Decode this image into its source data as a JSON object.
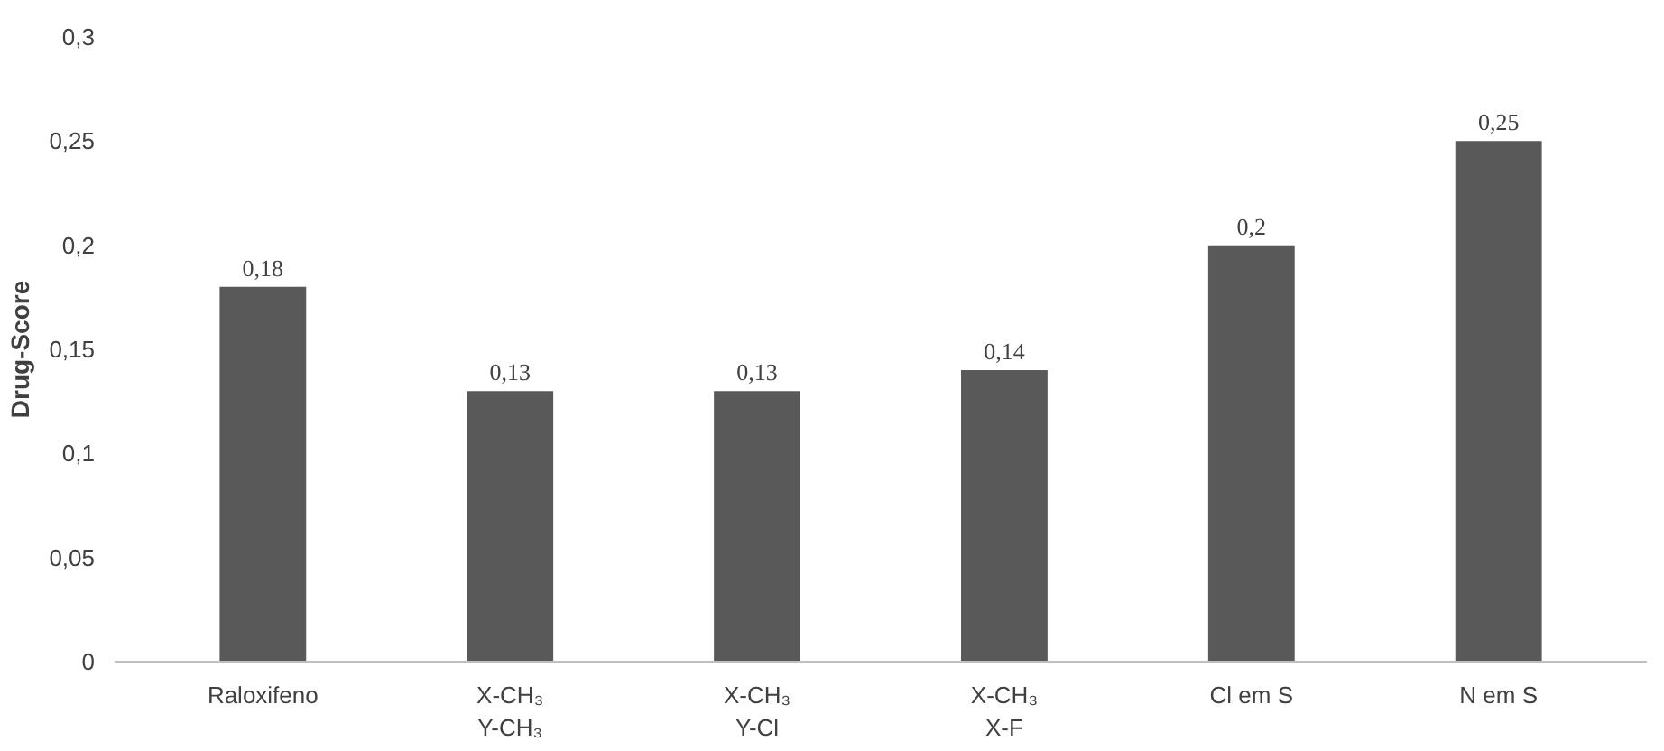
{
  "chart_data": {
    "type": "bar",
    "ylabel": "Drug-Score",
    "categories": [
      "Raloxifeno",
      "X-CH₃\nY-CH₃",
      "X-CH₃\nY-Cl",
      "X-CH₃\nX-F",
      "Cl em S",
      "N em S"
    ],
    "values": [
      0.18,
      0.13,
      0.13,
      0.14,
      0.2,
      0.25
    ],
    "value_labels": [
      "0,18",
      "0,13",
      "0,13",
      "0,14",
      "0,2",
      "0,25"
    ],
    "color": "#595959",
    "ylim": [
      0,
      0.3
    ],
    "yticks": [
      0,
      {
        "value": 0.05,
        "label": "0,05"
      },
      {
        "value": 0.1,
        "label": "0,1"
      },
      {
        "value": 0.15,
        "label": "0,15"
      },
      {
        "value": 0.2,
        "label": "0,2"
      },
      {
        "value": 0.25,
        "label": "0,25"
      },
      {
        "value": 0.3,
        "label": "0,3"
      }
    ],
    "grid": false
  }
}
